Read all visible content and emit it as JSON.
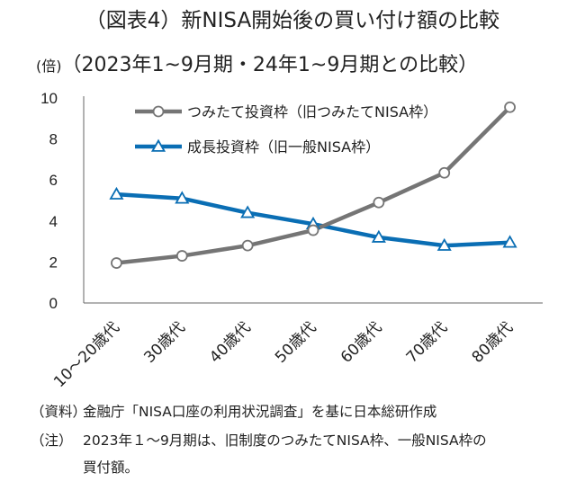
{
  "title": {
    "main": "（図表4）新NISA開始後の買い付け額の比較",
    "sub": "（2023年1~9月期・24年1~9月期との比較）",
    "unit": "(倍)"
  },
  "chart_data": {
    "type": "line",
    "categories": [
      "10～20歳代",
      "30歳代",
      "40歳代",
      "50歳代",
      "60歳代",
      "70歳代",
      "80歳代"
    ],
    "series": [
      {
        "name": "つみたて投資枠（旧つみたてNISA枠）",
        "values": [
          1.95,
          2.3,
          2.8,
          3.55,
          4.9,
          6.35,
          9.55
        ],
        "color": "#757575",
        "marker": "circle"
      },
      {
        "name": "成長投資枠（旧一般NISA枠）",
        "values": [
          5.3,
          5.1,
          4.4,
          3.85,
          3.2,
          2.8,
          2.95
        ],
        "color": "#0a6eb4",
        "marker": "triangle"
      }
    ],
    "ylim": [
      0,
      10
    ],
    "yticks": [
      "0",
      "2",
      "4",
      "6",
      "8",
      "10"
    ],
    "ytick_values": [
      0,
      2,
      4,
      6,
      8,
      10
    ],
    "grid": false,
    "legend_position": "top-left inside"
  },
  "notes": {
    "source_label": "（資料）",
    "source_text": "金融庁「NISA口座の利用状況調査」を基に日本総研作成",
    "note_label": "（注）",
    "note_line1": "2023年１～9月期は、旧制度のつみたてNISA枠、一般NISA枠の",
    "note_line2": "買付額。"
  }
}
